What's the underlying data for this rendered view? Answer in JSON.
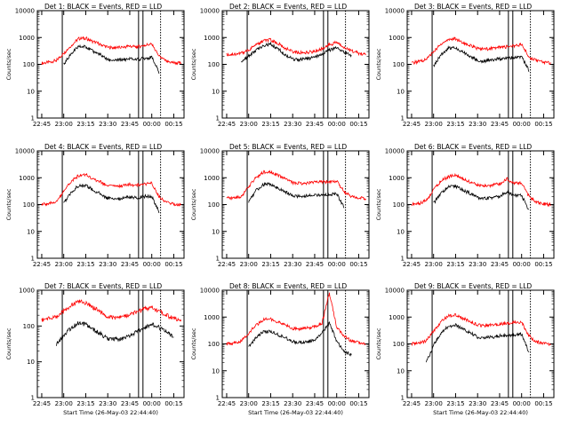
{
  "chart_data": [
    {
      "type": "line",
      "title": "Det 1: BLACK = Events, RED = LLD",
      "xlabel": "",
      "ylabel": "Counts/sec",
      "yscale": "log",
      "ylim": [
        1,
        10000
      ],
      "yticks": [
        "1",
        "10",
        "100",
        "1000",
        "10000"
      ],
      "xticks": [
        "22:45",
        "23:00",
        "23:15",
        "23:30",
        "23:45",
        "00:00",
        "00:15"
      ],
      "x": [
        "22:45",
        "22:50",
        "22:55",
        "23:00",
        "23:05",
        "23:10",
        "23:15",
        "23:20",
        "23:25",
        "23:30",
        "23:35",
        "23:40",
        "23:45",
        "23:50",
        "23:55",
        "00:00",
        "00:05",
        "00:10",
        "00:15",
        "00:20"
      ],
      "series": [
        {
          "name": "RED",
          "color": "#ff0000",
          "values": [
            110,
            120,
            140,
            260,
            500,
            900,
            950,
            700,
            560,
            430,
            420,
            430,
            480,
            440,
            520,
            560,
            200,
            130,
            115,
            110
          ]
        },
        {
          "name": "BLACK",
          "color": "#000000",
          "values": [
            null,
            null,
            null,
            100,
            250,
            450,
            460,
            300,
            230,
            150,
            140,
            150,
            160,
            150,
            170,
            180,
            50,
            null,
            null,
            null
          ]
        }
      ],
      "vlines_solid": [
        "22:59",
        "23:51",
        "23:54"
      ],
      "vlines_dotted": [
        "00:06"
      ]
    },
    {
      "type": "line",
      "title": "Det 2: BLACK = Events, RED = LLD",
      "xlabel": "",
      "ylabel": "Counts/sec",
      "yscale": "log",
      "ylim": [
        1,
        10000
      ],
      "yticks": [
        "1",
        "10",
        "100",
        "1000",
        "10000"
      ],
      "xticks": [
        "22:45",
        "23:00",
        "23:15",
        "23:30",
        "23:45",
        "00:00",
        "00:15"
      ],
      "x": [
        "22:45",
        "22:50",
        "22:55",
        "23:00",
        "23:05",
        "23:10",
        "23:15",
        "23:20",
        "23:25",
        "23:30",
        "23:35",
        "23:40",
        "23:45",
        "23:50",
        "23:55",
        "00:00",
        "00:05",
        "00:10",
        "00:15",
        "00:20"
      ],
      "series": [
        {
          "name": "RED",
          "color": "#ff0000",
          "values": [
            230,
            240,
            260,
            350,
            520,
            750,
            820,
            600,
            400,
            290,
            270,
            280,
            300,
            380,
            540,
            650,
            450,
            320,
            260,
            230
          ]
        },
        {
          "name": "BLACK",
          "color": "#000000",
          "values": [
            null,
            null,
            130,
            200,
            330,
            500,
            560,
            380,
            230,
            160,
            150,
            160,
            180,
            240,
            340,
            420,
            300,
            200,
            null,
            null
          ]
        }
      ],
      "vlines_solid": [
        "22:59",
        "23:51",
        "23:54"
      ],
      "vlines_dotted": [
        "00:06"
      ]
    },
    {
      "type": "line",
      "title": "Det 3: BLACK = Events, RED = LLD",
      "xlabel": "",
      "ylabel": "Counts/sec",
      "yscale": "log",
      "ylim": [
        1,
        10000
      ],
      "yticks": [
        "1",
        "10",
        "100",
        "1000",
        "10000"
      ],
      "xticks": [
        "22:45",
        "23:00",
        "23:15",
        "23:30",
        "23:45",
        "00:00",
        "00:15"
      ],
      "x": [
        "22:45",
        "22:50",
        "22:55",
        "23:00",
        "23:05",
        "23:10",
        "23:15",
        "23:20",
        "23:25",
        "23:30",
        "23:35",
        "23:40",
        "23:45",
        "23:50",
        "23:55",
        "00:00",
        "00:05",
        "00:10",
        "00:15",
        "00:20"
      ],
      "series": [
        {
          "name": "RED",
          "color": "#ff0000",
          "values": [
            110,
            130,
            150,
            300,
            550,
            850,
            900,
            650,
            500,
            380,
            370,
            390,
            430,
            450,
            500,
            550,
            190,
            140,
            120,
            110
          ]
        },
        {
          "name": "BLACK",
          "color": "#000000",
          "values": [
            null,
            null,
            null,
            90,
            220,
            400,
            420,
            280,
            200,
            140,
            130,
            150,
            160,
            170,
            180,
            190,
            60,
            null,
            null,
            null
          ]
        }
      ],
      "vlines_solid": [
        "22:59",
        "23:51",
        "23:54"
      ],
      "vlines_dotted": [
        "00:06"
      ]
    },
    {
      "type": "line",
      "title": "Det 4: BLACK = Events, RED = LLD",
      "xlabel": "",
      "ylabel": "Counts/sec",
      "yscale": "log",
      "ylim": [
        1,
        10000
      ],
      "yticks": [
        "1",
        "10",
        "100",
        "1000",
        "10000"
      ],
      "xticks": [
        "22:45",
        "23:00",
        "23:15",
        "23:30",
        "23:45",
        "00:00",
        "00:15"
      ],
      "x": [
        "22:45",
        "22:50",
        "22:55",
        "23:00",
        "23:05",
        "23:10",
        "23:15",
        "23:20",
        "23:25",
        "23:30",
        "23:35",
        "23:40",
        "23:45",
        "23:50",
        "23:55",
        "00:00",
        "00:05",
        "00:10",
        "00:15",
        "00:20"
      ],
      "series": [
        {
          "name": "RED",
          "color": "#ff0000",
          "values": [
            100,
            110,
            130,
            300,
            700,
            1200,
            1300,
            900,
            700,
            500,
            480,
            500,
            560,
            540,
            580,
            620,
            200,
            120,
            105,
            100
          ]
        },
        {
          "name": "BLACK",
          "color": "#000000",
          "values": [
            null,
            null,
            null,
            110,
            280,
            500,
            520,
            350,
            250,
            170,
            160,
            170,
            190,
            180,
            200,
            210,
            50,
            null,
            null,
            null
          ]
        }
      ],
      "vlines_solid": [
        "22:59",
        "23:51",
        "23:54"
      ],
      "vlines_dotted": [
        "00:06"
      ]
    },
    {
      "type": "line",
      "title": "Det 5: BLACK = Events, RED = LLD",
      "xlabel": "",
      "ylabel": "Counts/sec",
      "yscale": "log",
      "ylim": [
        1,
        10000
      ],
      "yticks": [
        "1",
        "10",
        "100",
        "1000",
        "10000"
      ],
      "xticks": [
        "22:45",
        "23:00",
        "23:15",
        "23:30",
        "23:45",
        "00:00",
        "00:15"
      ],
      "x": [
        "22:45",
        "22:50",
        "22:55",
        "23:00",
        "23:05",
        "23:10",
        "23:15",
        "23:20",
        "23:25",
        "23:30",
        "23:35",
        "23:40",
        "23:45",
        "23:50",
        "23:55",
        "00:00",
        "00:05",
        "00:10",
        "00:15",
        "00:20"
      ],
      "series": [
        {
          "name": "RED",
          "color": "#ff0000",
          "values": [
            170,
            180,
            200,
            450,
            1000,
            1600,
            1700,
            1200,
            900,
            650,
            620,
            640,
            700,
            680,
            720,
            760,
            300,
            200,
            180,
            170
          ]
        },
        {
          "name": "BLACK",
          "color": "#000000",
          "values": [
            null,
            null,
            null,
            130,
            330,
            550,
            580,
            400,
            300,
            210,
            200,
            210,
            230,
            220,
            240,
            250,
            80,
            null,
            null,
            null
          ]
        }
      ],
      "vlines_solid": [
        "22:59",
        "23:51",
        "23:54"
      ],
      "vlines_dotted": [
        "00:06"
      ]
    },
    {
      "type": "line",
      "title": "Det 6: BLACK = Events, RED = LLD",
      "xlabel": "",
      "ylabel": "Counts/sec",
      "yscale": "log",
      "ylim": [
        1,
        10000
      ],
      "yticks": [
        "1",
        "10",
        "100",
        "1000",
        "10000"
      ],
      "xticks": [
        "22:45",
        "23:00",
        "23:15",
        "23:30",
        "23:45",
        "00:00",
        "00:15"
      ],
      "x": [
        "22:45",
        "22:50",
        "22:55",
        "23:00",
        "23:05",
        "23:10",
        "23:15",
        "23:20",
        "23:25",
        "23:30",
        "23:35",
        "23:40",
        "23:45",
        "23:50",
        "23:55",
        "00:00",
        "00:05",
        "00:10",
        "00:15",
        "00:20"
      ],
      "series": [
        {
          "name": "RED",
          "color": "#ff0000",
          "values": [
            100,
            110,
            140,
            350,
            750,
            1100,
            1200,
            900,
            700,
            520,
            500,
            520,
            580,
            900,
            620,
            650,
            200,
            120,
            105,
            100
          ]
        },
        {
          "name": "BLACK",
          "color": "#000000",
          "values": [
            null,
            null,
            null,
            110,
            270,
            450,
            480,
            340,
            260,
            180,
            170,
            180,
            200,
            300,
            210,
            220,
            60,
            null,
            null,
            null
          ]
        }
      ],
      "vlines_solid": [
        "22:59",
        "23:51",
        "23:54"
      ],
      "vlines_dotted": [
        "00:06"
      ]
    },
    {
      "type": "line",
      "title": "Det 7: BLACK = Events, RED = LLD",
      "xlabel": "Start Time (26-May-03 22:44:40)",
      "ylabel": "Counts/sec",
      "yscale": "log",
      "ylim": [
        1,
        1000
      ],
      "yticks": [
        "1",
        "10",
        "100",
        "1000"
      ],
      "xticks": [
        "22:45",
        "23:00",
        "23:15",
        "23:30",
        "23:45",
        "00:00",
        "00:15"
      ],
      "x": [
        "22:45",
        "22:50",
        "22:55",
        "23:00",
        "23:05",
        "23:10",
        "23:15",
        "23:20",
        "23:25",
        "23:30",
        "23:35",
        "23:40",
        "23:45",
        "23:50",
        "23:55",
        "00:00",
        "00:05",
        "00:10",
        "00:15",
        "00:20"
      ],
      "series": [
        {
          "name": "RED",
          "color": "#ff0000",
          "values": [
            150,
            160,
            180,
            260,
            380,
            480,
            450,
            330,
            250,
            180,
            170,
            180,
            210,
            250,
            300,
            320,
            260,
            200,
            160,
            150
          ]
        },
        {
          "name": "BLACK",
          "color": "#000000",
          "values": [
            null,
            null,
            30,
            55,
            90,
            120,
            110,
            80,
            60,
            45,
            42,
            45,
            55,
            70,
            90,
            110,
            90,
            70,
            50,
            null
          ]
        }
      ],
      "vlines_solid": [
        "22:59",
        "23:51",
        "23:54"
      ],
      "vlines_dotted": [
        "00:06"
      ]
    },
    {
      "type": "line",
      "title": "Det 8: BLACK = Events, RED = LLD",
      "xlabel": "Start Time (26-May-03 22:44:40)",
      "ylabel": "Counts/sec",
      "yscale": "log",
      "ylim": [
        1,
        10000
      ],
      "yticks": [
        "1",
        "10",
        "100",
        "1000",
        "10000"
      ],
      "xticks": [
        "22:45",
        "23:00",
        "23:15",
        "23:30",
        "23:45",
        "00:00",
        "00:15"
      ],
      "x": [
        "22:45",
        "22:50",
        "22:55",
        "23:00",
        "23:05",
        "23:10",
        "23:15",
        "23:20",
        "23:25",
        "23:30",
        "23:35",
        "23:40",
        "23:45",
        "23:50",
        "23:55",
        "00:00",
        "00:05",
        "00:10",
        "00:15",
        "00:20"
      ],
      "series": [
        {
          "name": "RED",
          "color": "#ff0000",
          "values": [
            100,
            110,
            130,
            250,
            500,
            800,
            850,
            650,
            500,
            380,
            370,
            390,
            450,
            600,
            8000,
            420,
            200,
            130,
            110,
            100
          ]
        },
        {
          "name": "BLACK",
          "color": "#000000",
          "values": [
            null,
            null,
            null,
            80,
            170,
            280,
            300,
            220,
            170,
            120,
            115,
            120,
            140,
            250,
            600,
            130,
            50,
            40,
            null,
            null
          ]
        }
      ],
      "vlines_solid": [
        "22:59",
        "23:51",
        "23:54"
      ],
      "vlines_dotted": [
        "00:06"
      ]
    },
    {
      "type": "line",
      "title": "Det 9: BLACK = Events, RED = LLD",
      "xlabel": "Start Time (26-May-03 22:44:40)",
      "ylabel": "Counts/sec",
      "yscale": "log",
      "ylim": [
        1,
        10000
      ],
      "yticks": [
        "1",
        "10",
        "100",
        "1000",
        "10000"
      ],
      "xticks": [
        "22:45",
        "23:00",
        "23:15",
        "23:30",
        "23:45",
        "00:00",
        "00:15"
      ],
      "x": [
        "22:45",
        "22:50",
        "22:55",
        "23:00",
        "23:05",
        "23:10",
        "23:15",
        "23:20",
        "23:25",
        "23:30",
        "23:35",
        "23:40",
        "23:45",
        "23:50",
        "23:55",
        "00:00",
        "00:05",
        "00:10",
        "00:15",
        "00:20"
      ],
      "series": [
        {
          "name": "RED",
          "color": "#ff0000",
          "values": [
            100,
            110,
            130,
            300,
            650,
            1100,
            1200,
            900,
            700,
            500,
            480,
            500,
            560,
            580,
            620,
            650,
            200,
            120,
            105,
            100
          ]
        },
        {
          "name": "BLACK",
          "color": "#000000",
          "values": [
            null,
            null,
            20,
            90,
            250,
            450,
            500,
            350,
            260,
            180,
            170,
            180,
            200,
            210,
            220,
            230,
            50,
            null,
            null,
            null
          ]
        }
      ],
      "vlines_solid": [
        "22:59",
        "23:51",
        "23:54"
      ],
      "vlines_dotted": [
        "00:06"
      ]
    }
  ]
}
